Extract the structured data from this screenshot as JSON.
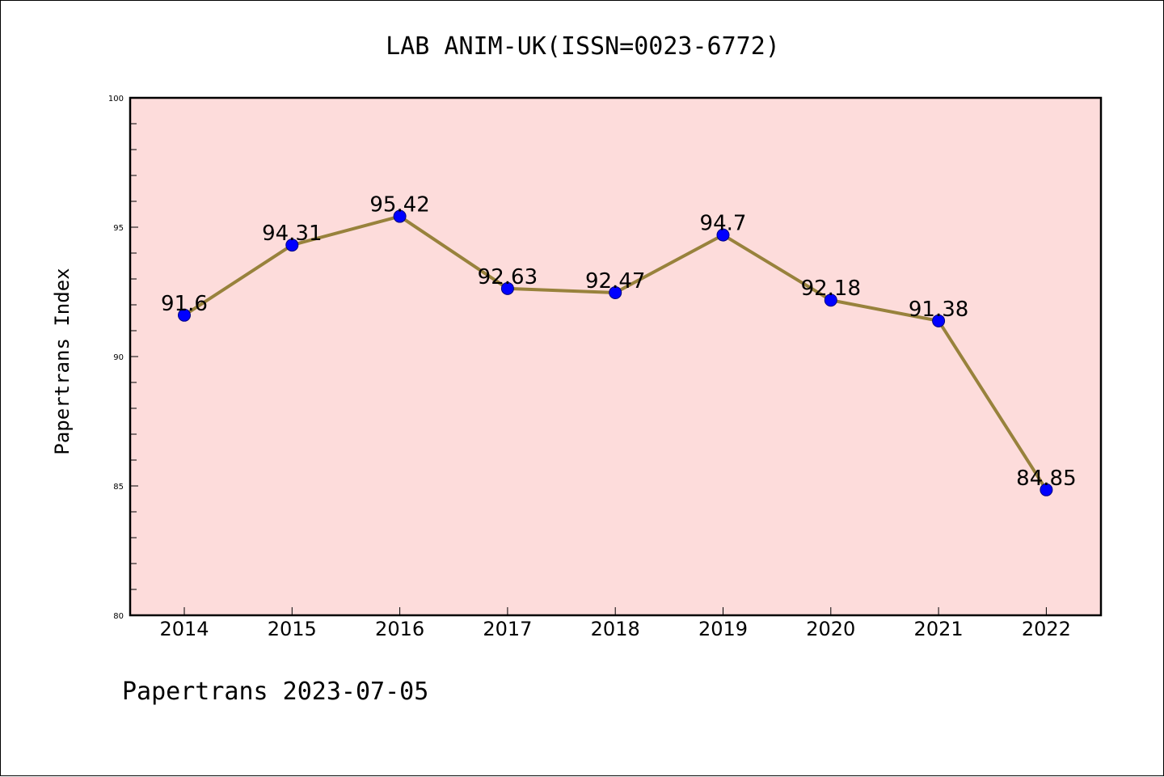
{
  "chart_data": {
    "type": "line",
    "title": "LAB ANIM-UK(ISSN=0023-6772)",
    "ylabel": "Papertrans Index",
    "xlabel": "",
    "categories": [
      "2014",
      "2015",
      "2016",
      "2017",
      "2018",
      "2019",
      "2020",
      "2021",
      "2022"
    ],
    "values": [
      91.6,
      94.31,
      95.42,
      92.63,
      92.47,
      94.7,
      92.18,
      91.38,
      84.85
    ],
    "data_labels": [
      "91.6",
      "94.31",
      "95.42",
      "92.63",
      "92.47",
      "94.7",
      "92.18",
      "91.38",
      "84.85"
    ],
    "ylim": [
      80,
      100
    ],
    "yticks": [
      80,
      85,
      90,
      95,
      100
    ],
    "ytick_labels": [
      "80",
      "85",
      "90",
      "95",
      "100"
    ],
    "grid": false,
    "legend": "none",
    "colors": {
      "line": "#98823c",
      "marker_fill": "#0000ff",
      "marker_edge": "#000080",
      "plot_background": "#fddcdb",
      "axis": "#000000"
    }
  },
  "footer": {
    "text": "Papertrans 2023-07-05"
  }
}
